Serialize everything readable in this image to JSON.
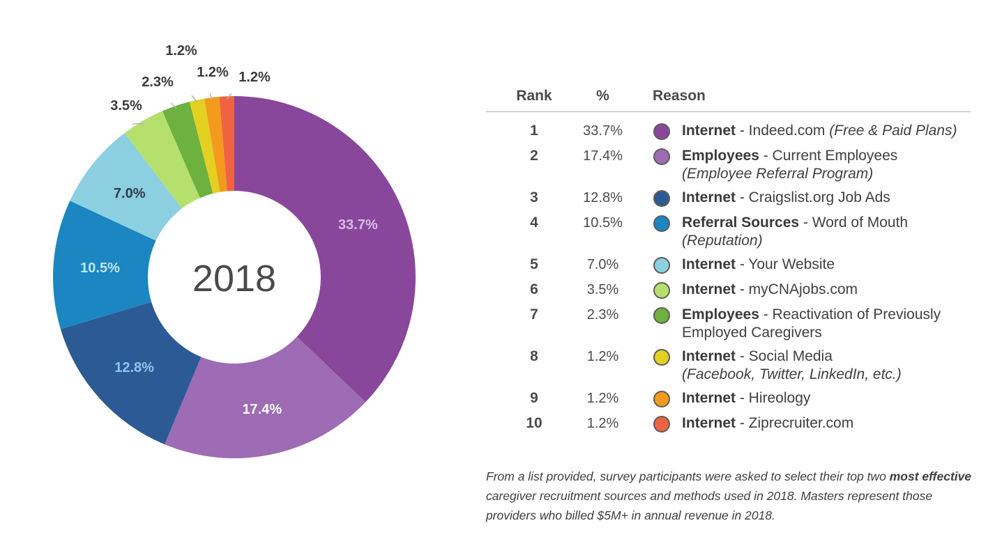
{
  "chart_data": {
    "type": "pie",
    "variant": "donut",
    "center_label": "2018",
    "categories": [
      "Internet - Indeed.com (Free & Paid Plans)",
      "Employees - Current Employees (Employee Referral Program)",
      "Internet - Craigslist.org Job Ads",
      "Referral Sources - Word of Mouth (Reputation)",
      "Internet - Your Website",
      "Internet - myCNAjobs.com",
      "Employees - Reactivation of Previously Employed Caregivers",
      "Internet - Social Media (Facebook, Twitter, LinkedIn, etc.)",
      "Internet - Hireology",
      "Internet - Ziprecruiter.com"
    ],
    "values": [
      33.7,
      17.4,
      12.8,
      10.5,
      7.0,
      3.5,
      2.3,
      1.2,
      1.2,
      1.2
    ],
    "labels": [
      "33.7%",
      "17.4%",
      "12.8%",
      "10.5%",
      "7.0%",
      "3.5%",
      "2.3%",
      "1.2%",
      "1.2%",
      "1.2%"
    ],
    "colors": [
      "#88479b",
      "#9d6cb4",
      "#2c5a94",
      "#1b86c2",
      "#8ccfe0",
      "#b5e06e",
      "#6db13e",
      "#e3d020",
      "#f39b1c",
      "#ef6343"
    ],
    "label_colors": [
      "#d9bde8",
      "#ffffff",
      "#8ec5ec",
      "#bfe4f5",
      "#2f3b48",
      "#3a3a3a",
      "#3a3a3a",
      "#3a3a3a",
      "#3a3a3a",
      "#3a3a3a"
    ]
  },
  "table": {
    "headers": {
      "rank": "Rank",
      "pct": "%",
      "reason": "Reason"
    },
    "rows": [
      {
        "rank": "1",
        "pct": "33.7%",
        "bold": "Internet",
        "text": " - Indeed.com ",
        "italic": "(Free & Paid Plans)"
      },
      {
        "rank": "2",
        "pct": "17.4%",
        "bold": "Employees",
        "text": " - Current Employees",
        "italic": "(Employee Referral Program)"
      },
      {
        "rank": "3",
        "pct": "12.8%",
        "bold": "Internet",
        "text": " - Craigslist.org Job Ads",
        "italic": ""
      },
      {
        "rank": "4",
        "pct": "10.5%",
        "bold": "Referral Sources",
        "text": " - Word of Mouth",
        "italic": "(Reputation)"
      },
      {
        "rank": "5",
        "pct": "7.0%",
        "bold": "Internet",
        "text": " - Your Website",
        "italic": ""
      },
      {
        "rank": "6",
        "pct": "3.5%",
        "bold": "Internet",
        "text": " - myCNAjobs.com",
        "italic": ""
      },
      {
        "rank": "7",
        "pct": "2.3%",
        "bold": "Employees",
        "text": " - Reactivation of Previously Employed Caregivers",
        "italic": ""
      },
      {
        "rank": "8",
        "pct": "1.2%",
        "bold": "Internet",
        "text": " - Social Media",
        "italic": "(Facebook, Twitter, LinkedIn, etc.)"
      },
      {
        "rank": "9",
        "pct": "1.2%",
        "bold": "Internet",
        "text": " - Hireology",
        "italic": ""
      },
      {
        "rank": "10",
        "pct": "1.2%",
        "bold": "Internet",
        "text": " - Ziprecruiter.com",
        "italic": ""
      }
    ]
  },
  "footnote": {
    "part1": "From a list provided, survey participants were asked to select their top two ",
    "bold": "most effective",
    "part2": " caregiver recruitment sources and methods used in 2018. Masters represent those providers who billed $5M+ in annual revenue in 2018."
  }
}
